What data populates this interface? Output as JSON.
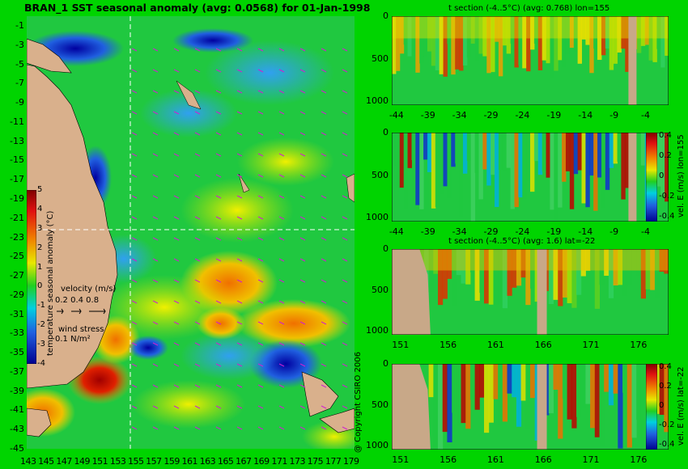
{
  "map": {
    "title": "BRAN_1 SST seasonal anomaly (avg: 0.0568) for 01-Jan-1998",
    "lat_ticks": [
      "-1",
      "-3",
      "-5",
      "-7",
      "-9",
      "-11",
      "-13",
      "-15",
      "-17",
      "-19",
      "-21",
      "-23",
      "-25",
      "-27",
      "-29",
      "-31",
      "-33",
      "-35",
      "-37",
      "-39",
      "-41",
      "-43",
      "-45"
    ],
    "lon_ticks": [
      "143",
      "145",
      "147",
      "149",
      "151",
      "153",
      "155",
      "157",
      "159",
      "161",
      "163",
      "165",
      "167",
      "169",
      "171",
      "173",
      "175",
      "177",
      "179"
    ],
    "colorbar": {
      "label": "temperature seasonal anomaly (°C)",
      "ticks": [
        "5",
        "4",
        "3",
        "2",
        "1",
        "0",
        "-1",
        "-2",
        "-3",
        "-4"
      ]
    },
    "velocity_legend": {
      "label": "velocity (m/s)",
      "values": "0.2 0.4 0.8"
    },
    "wind_legend": {
      "label": "wind stress",
      "value": "0.1 N/m²"
    },
    "copyright": "@ Copyright CSIRO 2006",
    "colors": {
      "land": "#d9b08c",
      "anomaly_low": "#1e1ec8",
      "anomaly_high": "#c81e00",
      "wind_arrows": "#d020d0"
    }
  },
  "sections": [
    {
      "title": "t section (-4..5°C) (avg: 0.768) lon=155",
      "x_ticks": [
        "-44",
        "-39",
        "-34",
        "-29",
        "-24",
        "-19",
        "-14",
        "-9",
        "-4"
      ],
      "y_ticks": [
        "0",
        "500",
        "1000"
      ],
      "cbar_label": "",
      "cbar_ticks": []
    },
    {
      "title": "",
      "x_ticks": [
        "-44",
        "-39",
        "-34",
        "-29",
        "-24",
        "-19",
        "-14",
        "-9",
        "-4"
      ],
      "y_ticks": [
        "0",
        "500",
        "1000"
      ],
      "cbar_label": "vel. E (m/s) lon=155",
      "cbar_ticks": [
        "0.4",
        "0.2",
        "0",
        "-0.2",
        "-0.4"
      ]
    },
    {
      "title": "t section (-4..5°C) (avg: 1.6) lat=-22",
      "x_ticks": [
        "151",
        "156",
        "161",
        "166",
        "171",
        "176"
      ],
      "y_ticks": [
        "0",
        "500",
        "1000"
      ],
      "cbar_label": "",
      "cbar_ticks": []
    },
    {
      "title": "",
      "x_ticks": [
        "151",
        "156",
        "161",
        "166",
        "171",
        "176"
      ],
      "y_ticks": [
        "0",
        "500",
        "1000"
      ],
      "cbar_label": "vel. E (m/s) lat=-22",
      "cbar_ticks": [
        "0.4",
        "0.2",
        "0",
        "-0.2",
        "-0.4"
      ]
    }
  ],
  "chart_data": [
    {
      "type": "heatmap",
      "title": "BRAN_1 SST seasonal anomaly (avg: 0.0568) for 01-Jan-1998",
      "xlabel": "",
      "ylabel": "",
      "xlim": [
        143,
        180
      ],
      "ylim": [
        -45,
        0
      ],
      "value_range": [
        -4,
        5
      ],
      "avg": 0.0568
    },
    {
      "type": "heatmap",
      "title": "t section (-4..5°C) (avg: 0.768) lon=155",
      "xlim": [
        -45,
        0
      ],
      "ylim": [
        0,
        1050
      ],
      "avg": 0.768
    },
    {
      "type": "heatmap",
      "title": "",
      "value_label": "vel. E (m/s) lon=155",
      "xlim": [
        -45,
        0
      ],
      "ylim": [
        0,
        1050
      ],
      "value_range": [
        -0.4,
        0.4
      ]
    },
    {
      "type": "heatmap",
      "title": "t section (-4..5°C) (avg: 1.6) lat=-22",
      "xlim": [
        150,
        180
      ],
      "ylim": [
        0,
        1050
      ],
      "avg": 1.6
    },
    {
      "type": "heatmap",
      "title": "",
      "value_label": "vel. E (m/s) lat=-22",
      "xlim": [
        150,
        180
      ],
      "ylim": [
        0,
        1050
      ],
      "value_range": [
        -0.4,
        0.4
      ]
    }
  ]
}
